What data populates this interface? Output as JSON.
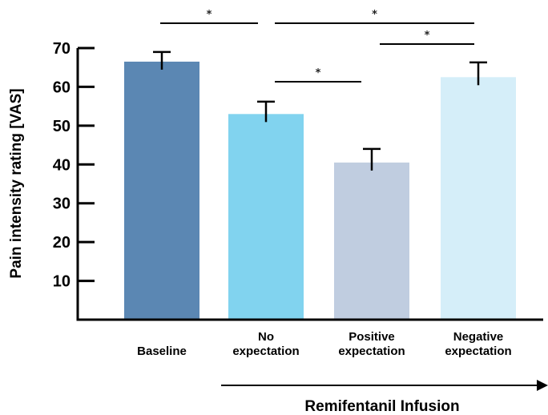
{
  "chart_data": {
    "type": "bar",
    "categories": [
      [
        "Baseline"
      ],
      [
        "No",
        "expectation"
      ],
      [
        "Positive",
        "expectation"
      ],
      [
        "Negative",
        "expectation"
      ]
    ],
    "values": [
      66.5,
      53,
      40.5,
      62.5
    ],
    "errors": [
      2.5,
      3.2,
      3.5,
      3.8
    ],
    "colors": [
      "#5b87b3",
      "#81d3ef",
      "#c0cde0",
      "#d5eef9"
    ],
    "ylabel": "Pain intensity rating [VAS]",
    "ylim": [
      0,
      70
    ],
    "yticks": [
      10,
      20,
      30,
      40,
      50,
      60,
      70
    ],
    "grid": false,
    "infusion_label": "Remifentanil Infusion",
    "significance": [
      {
        "from": 0,
        "to": 1,
        "label": "*"
      },
      {
        "from": 1,
        "to": 3,
        "label": "*"
      },
      {
        "from": 2,
        "to": 3,
        "label": "*"
      },
      {
        "from": 1,
        "to": 2,
        "label": "*"
      }
    ]
  }
}
